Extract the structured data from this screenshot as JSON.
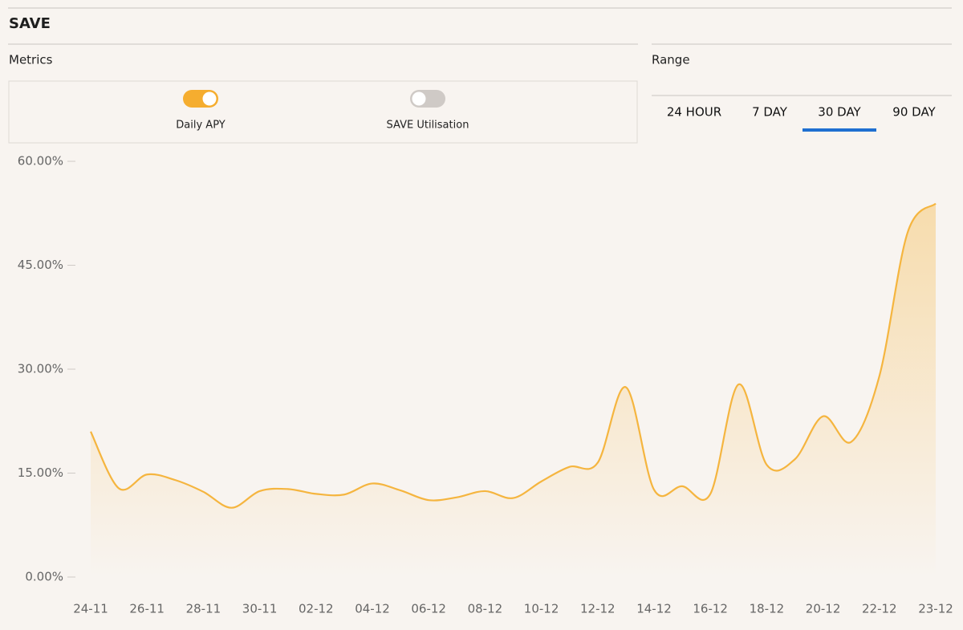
{
  "header": {
    "title": "SAVE"
  },
  "metrics": {
    "label": "Metrics",
    "toggles": [
      {
        "label": "Daily APY",
        "on": true
      },
      {
        "label": "SAVE Utilisation",
        "on": false
      }
    ]
  },
  "range": {
    "label": "Range",
    "options": [
      "24 HOUR",
      "7 DAY",
      "30 DAY",
      "90 DAY"
    ],
    "selected": 2
  },
  "chart_data": {
    "type": "area",
    "color": "#f5b53f",
    "categories": [
      "24-11",
      null,
      "26-11",
      null,
      "28-11",
      null,
      "30-11",
      null,
      "02-12",
      null,
      "04-12",
      null,
      "06-12",
      null,
      "08-12",
      null,
      "10-12",
      null,
      "12-12",
      null,
      "14-12",
      null,
      "16-12",
      null,
      "18-12",
      null,
      "20-12",
      null,
      "22-12",
      null,
      "23-12"
    ],
    "values": [
      21,
      12.8,
      14.8,
      14,
      12.3,
      10,
      12.4,
      12.7,
      12,
      11.9,
      13.5,
      12.5,
      11.1,
      11.5,
      12.4,
      11.4,
      13.8,
      15.9,
      16.5,
      27.4,
      12.6,
      13.1,
      12,
      27.8,
      16.2,
      17,
      23.2,
      19.5,
      29,
      49.7,
      53.9
    ],
    "ylim": [
      0,
      60
    ],
    "yticks": [
      {
        "value": 0,
        "label": "0.00%"
      },
      {
        "value": 15,
        "label": "15.00%"
      },
      {
        "value": 30,
        "label": "30.00%"
      },
      {
        "value": 45,
        "label": "45.00%"
      },
      {
        "value": 60,
        "label": "60.00%"
      }
    ]
  }
}
